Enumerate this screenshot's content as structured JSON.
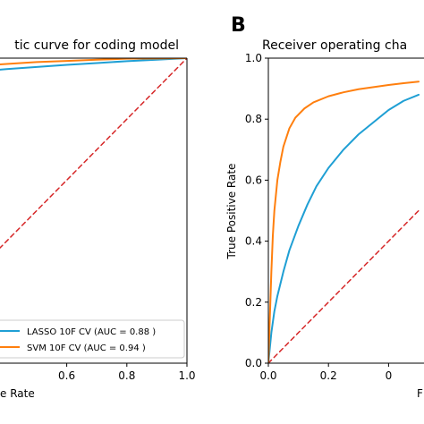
{
  "figure": {
    "panel_b_letter": "B"
  },
  "chart_data": [
    {
      "type": "line",
      "title": "tic curve for coding model",
      "xlabel": "e Rate",
      "ylabel": "",
      "xlim": [
        0.0,
        1.0
      ],
      "ylim": [
        0.0,
        1.0
      ],
      "x_ticks": [
        0.6,
        0.8,
        1.0
      ],
      "x_tick_labels": [
        "0.6",
        "0.8",
        "1.0"
      ],
      "y_ticks": [],
      "y_tick_labels": [],
      "grid": false,
      "legend_position": "bottom-right",
      "series": [
        {
          "name": "LASSO 10F CV (AUC = 0.88 )",
          "color": "#1f9fd4",
          "style": "solid",
          "x": [
            0.0,
            0.1,
            0.2,
            0.3,
            0.4,
            0.5,
            0.6,
            0.7,
            0.8,
            0.9,
            1.0
          ],
          "y": [
            0.0,
            0.935,
            0.947,
            0.956,
            0.964,
            0.971,
            0.978,
            0.984,
            0.99,
            0.995,
            1.0
          ]
        },
        {
          "name": "SVM 10F CV (AUC = 0.94 )",
          "color": "#ff7f0e",
          "style": "solid",
          "x": [
            0.0,
            0.1,
            0.2,
            0.3,
            0.4,
            0.5,
            0.6,
            0.7,
            0.8,
            0.9,
            1.0
          ],
          "y": [
            0.0,
            0.955,
            0.966,
            0.974,
            0.981,
            0.987,
            0.991,
            0.995,
            0.998,
            0.999,
            1.0
          ]
        },
        {
          "name": "",
          "color": "#d62728",
          "style": "dashed",
          "x": [
            0.0,
            1.0
          ],
          "y": [
            0.0,
            1.0
          ]
        }
      ]
    },
    {
      "type": "line",
      "title": "Receiver operating cha",
      "xlabel": "F",
      "ylabel": "True Positive Rate",
      "xlim": [
        0.0,
        1.0
      ],
      "ylim": [
        0.0,
        1.0
      ],
      "x_ticks": [
        0.0,
        0.2,
        0.4
      ],
      "x_tick_labels": [
        "0.0",
        "0.2",
        "0"
      ],
      "y_ticks": [
        0.0,
        0.2,
        0.4,
        0.6,
        0.8,
        1.0
      ],
      "y_tick_labels": [
        "0.0",
        "0.2",
        "0.4",
        "0.6",
        "0.8",
        "1.0"
      ],
      "grid": false,
      "series": [
        {
          "name": "",
          "color": "#1f9fd4",
          "style": "solid",
          "x": [
            0.0,
            0.01,
            0.02,
            0.03,
            0.05,
            0.07,
            0.1,
            0.13,
            0.16,
            0.2,
            0.25,
            0.3,
            0.35,
            0.4,
            0.45,
            0.5
          ],
          "y": [
            0.0,
            0.1,
            0.17,
            0.22,
            0.3,
            0.37,
            0.45,
            0.52,
            0.58,
            0.64,
            0.7,
            0.75,
            0.79,
            0.83,
            0.86,
            0.88
          ]
        },
        {
          "name": "",
          "color": "#ff7f0e",
          "style": "solid",
          "x": [
            0.0,
            0.005,
            0.01,
            0.015,
            0.02,
            0.03,
            0.04,
            0.05,
            0.07,
            0.09,
            0.12,
            0.15,
            0.2,
            0.25,
            0.3,
            0.35,
            0.4,
            0.45,
            0.5
          ],
          "y": [
            0.0,
            0.15,
            0.3,
            0.42,
            0.5,
            0.6,
            0.66,
            0.71,
            0.77,
            0.805,
            0.835,
            0.855,
            0.875,
            0.888,
            0.898,
            0.905,
            0.912,
            0.918,
            0.923
          ]
        },
        {
          "name": "",
          "color": "#d62728",
          "style": "dashed",
          "x": [
            0.0,
            0.5
          ],
          "y": [
            0.0,
            0.5
          ]
        }
      ]
    }
  ]
}
